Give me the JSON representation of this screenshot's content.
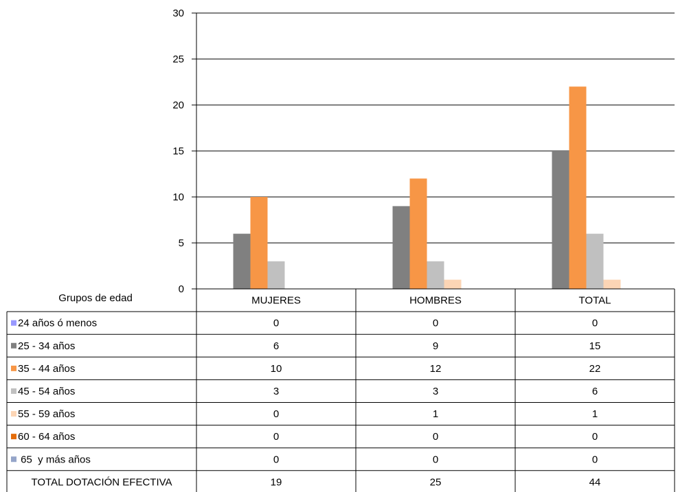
{
  "chart_data": {
    "type": "bar",
    "categories": [
      "MUJERES",
      "HOMBRES",
      "TOTAL"
    ],
    "ylim": [
      0,
      30
    ],
    "yticks": [
      0,
      5,
      10,
      15,
      20,
      25,
      30
    ],
    "grid": true,
    "table_header_label": "Grupos de edad",
    "series": [
      {
        "name": "24 años ó menos",
        "values": [
          0,
          0,
          0
        ],
        "color": "#9999ff"
      },
      {
        "name": "25 - 34 años",
        "values": [
          6,
          9,
          15
        ],
        "color": "#808080"
      },
      {
        "name": "35 - 44 años",
        "values": [
          10,
          12,
          22
        ],
        "color": "#f79646"
      },
      {
        "name": "45 - 54 años",
        "values": [
          3,
          3,
          6
        ],
        "color": "#c0c0c0"
      },
      {
        "name": "55 - 59 años",
        "values": [
          0,
          1,
          1
        ],
        "color": "#fcd5b5"
      },
      {
        "name": "60 - 64 años",
        "values": [
          0,
          0,
          0
        ],
        "color": "#e46c0a"
      },
      {
        "name": " 65  y más años",
        "values": [
          0,
          0,
          0
        ],
        "color": "#95a5c9"
      }
    ],
    "total_row": {
      "label": "TOTAL DOTACIÓN EFECTIVA",
      "values": [
        19,
        25,
        44
      ]
    }
  }
}
